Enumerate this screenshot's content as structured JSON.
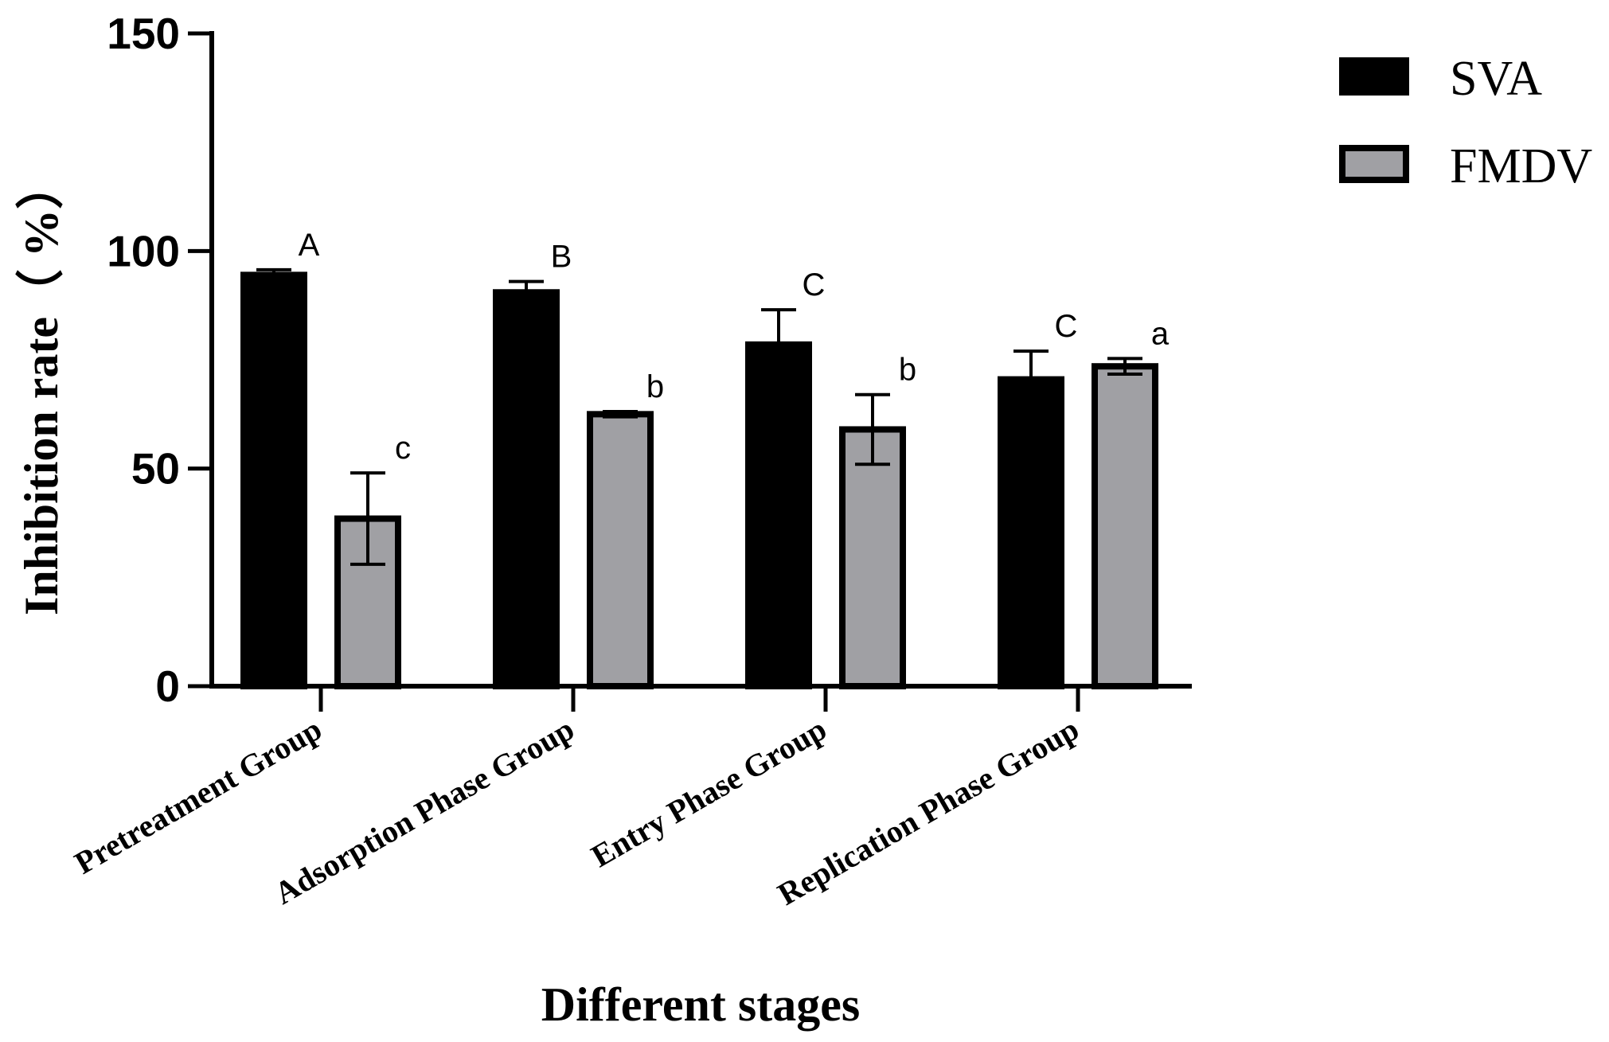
{
  "chart_data": {
    "type": "bar",
    "title": "",
    "xlabel": "Different stages",
    "ylabel": "Inhibition rate（ %）",
    "ylim": [
      0,
      150
    ],
    "yticks": [
      "0",
      "50",
      "100",
      "150"
    ],
    "categories": [
      "Pretreatment Group",
      "Adsorption Phase Group",
      "Entry Phase Group",
      "Replication Phase Group"
    ],
    "series": [
      {
        "name": "SVA",
        "color": "#000000",
        "values": [
          94.5,
          90.5,
          78.5,
          70.5
        ],
        "errors": [
          1.2,
          2.5,
          8.0,
          6.5
        ],
        "significance": [
          "A",
          "B",
          "C",
          "C"
        ]
      },
      {
        "name": "FMDV",
        "color": "#a0a0a4",
        "values": [
          38.5,
          62.5,
          59.0,
          73.5
        ],
        "errors": [
          10.5,
          0.6,
          8.0,
          1.8
        ],
        "significance": [
          "c",
          "b",
          "b",
          "a"
        ]
      }
    ],
    "legend_position": "top-right"
  }
}
